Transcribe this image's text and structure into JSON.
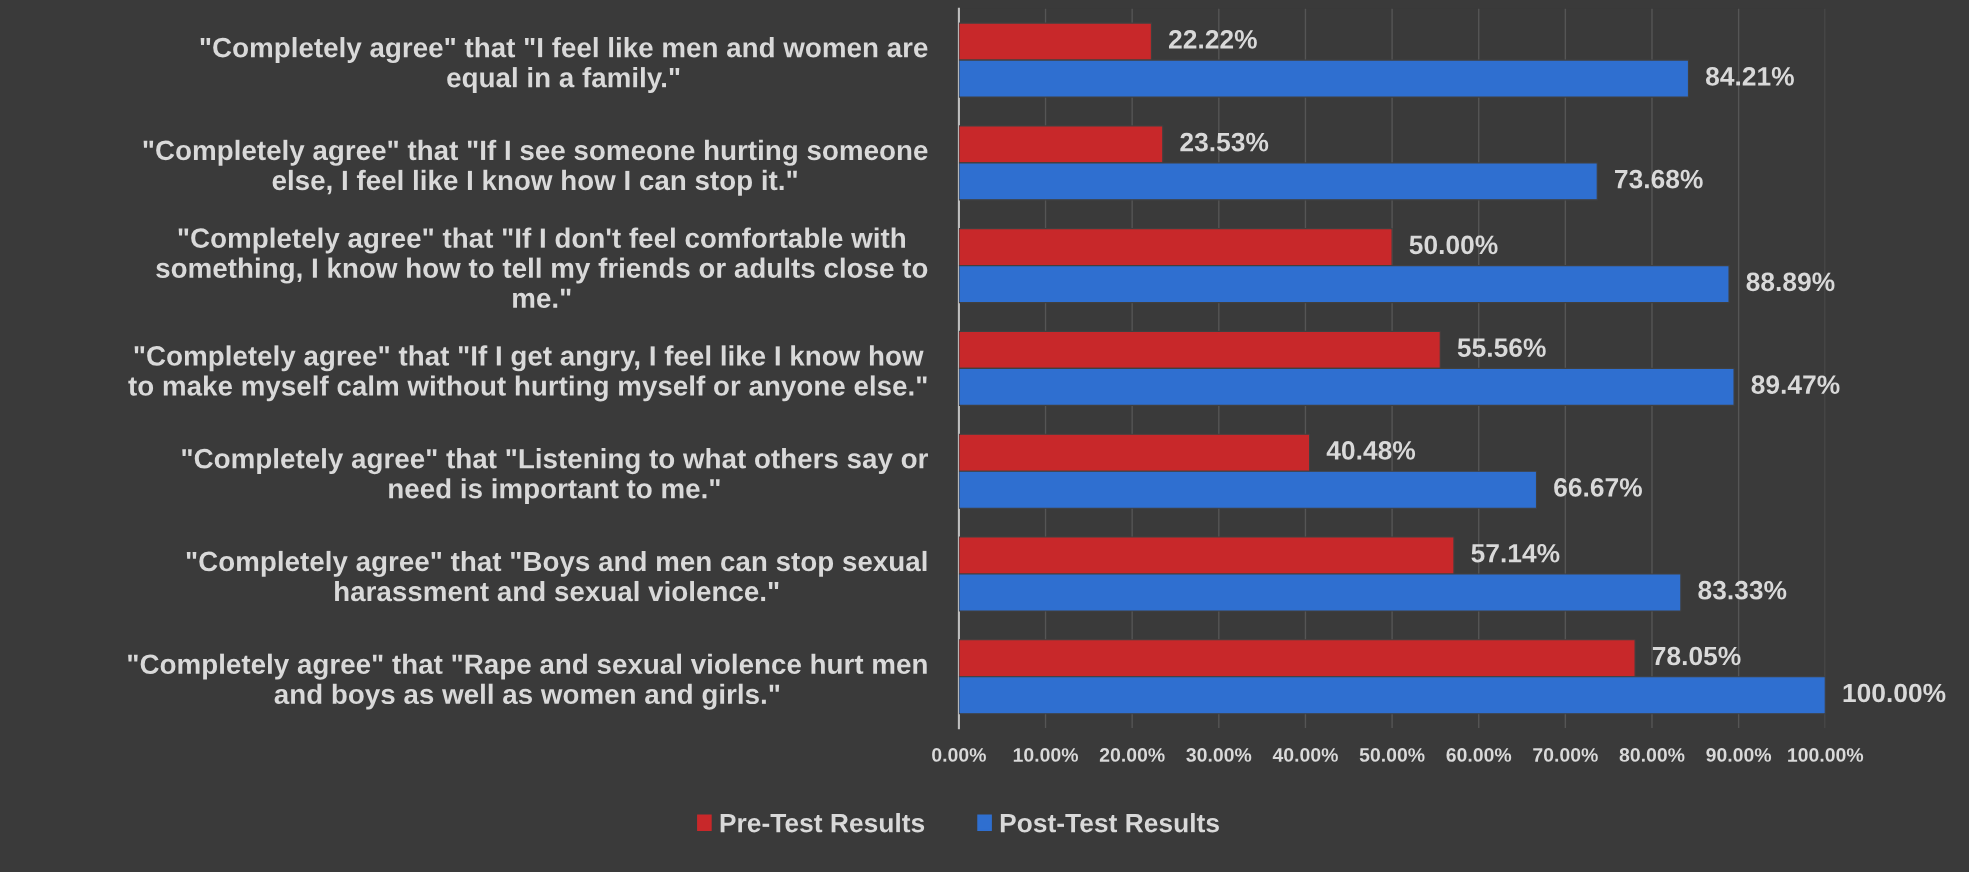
{
  "chart_data": {
    "type": "bar",
    "orientation": "horizontal",
    "categories": [
      "\"Completely agree\" that \"I feel like men and women are\nequal in a family.\"",
      "\"Completely agree\" that \"If I see someone hurting someone\nelse, I feel like I know how I can stop it.\"",
      "\"Completely agree\" that \"If I don't feel comfortable with\nsomething, I know how to tell my friends or adults close to\nme.\"",
      "\"Completely agree\" that \"If I get angry, I feel like I know how\nto make myself calm without hurting myself or anyone else.\"",
      "\"Completely agree\" that \"Listening to what others say or\nneed is important to me.\"",
      "\"Completely agree\" that \"Boys and men can stop sexual\nharassment and sexual violence.\"",
      "\"Completely agree\" that \"Rape and sexual violence hurt men\nand boys as well as women and girls.\""
    ],
    "series": [
      {
        "name": "Pre-Test Results",
        "color": "#c8282a",
        "values": [
          22.22,
          23.53,
          50.0,
          55.56,
          40.48,
          57.14,
          78.05
        ],
        "value_labels": [
          "22.22%",
          "23.53%",
          "50.00%",
          "55.56%",
          "40.48%",
          "57.14%",
          "78.05%"
        ]
      },
      {
        "name": "Post-Test Results",
        "color": "#2f6fd0",
        "values": [
          84.21,
          73.68,
          88.89,
          89.47,
          66.67,
          83.33,
          100.0
        ],
        "value_labels": [
          "84.21%",
          "73.68%",
          "88.89%",
          "89.47%",
          "66.67%",
          "83.33%",
          "100.00%"
        ]
      }
    ],
    "xlim": [
      0,
      100
    ],
    "xticks": [
      {
        "value": 0,
        "label": "0.00%"
      },
      {
        "value": 10,
        "label": "10.00%"
      },
      {
        "value": 20,
        "label": "20.00%"
      },
      {
        "value": 30,
        "label": "30.00%"
      },
      {
        "value": 40,
        "label": "40.00%"
      },
      {
        "value": 50,
        "label": "50.00%"
      },
      {
        "value": 60,
        "label": "60.00%"
      },
      {
        "value": 70,
        "label": "70.00%"
      },
      {
        "value": 80,
        "label": "80.00%"
      },
      {
        "value": 90,
        "label": "90.00%"
      },
      {
        "value": 100,
        "label": "100.00%"
      }
    ],
    "grid": "x",
    "legend": "bottom"
  }
}
